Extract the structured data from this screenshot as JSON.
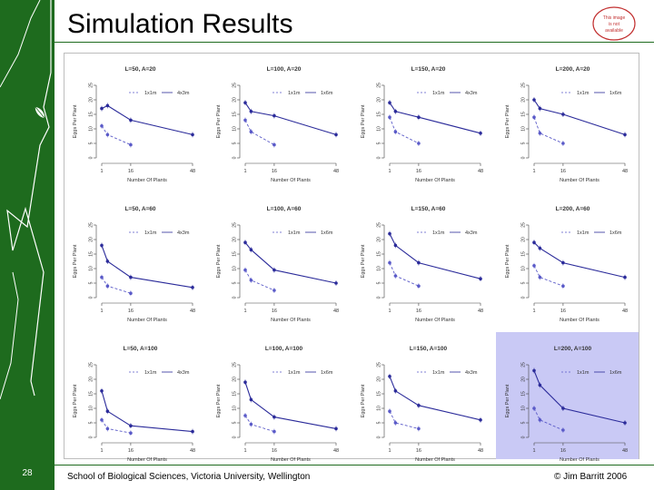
{
  "slide": {
    "title": "Simulation Results",
    "number": "28",
    "footer": "School of Biological Sciences, Victoria University, Wellington",
    "copyright": "© Jim Barritt 2006",
    "logo_text": [
      "This image",
      "is not",
      "available"
    ]
  },
  "colors": {
    "sidebar": "#1e6b1e",
    "series_solid": "#2b2b9a",
    "series_dashed": "#5a5ac8",
    "highlight": "#c9c9f5"
  },
  "chart_data": {
    "type": "line",
    "layout": "3x4 small multiples",
    "highlighted_panel": "L=200, A=100",
    "panels": [
      {
        "title": "L=50, A=20",
        "ylabel": "Eggs Per Plant",
        "legend": [
          "1x1m",
          "4x3m"
        ],
        "xlabel": "Number Of Plants",
        "xticks": [
          1,
          16,
          48
        ],
        "yticks": [
          0,
          5,
          10,
          15,
          20,
          25
        ],
        "ylim": [
          0,
          25
        ],
        "series": [
          {
            "name": "4x3m",
            "style": "solid",
            "x": [
              1,
              4,
              16,
              48
            ],
            "y": [
              17,
              18,
              13,
              8
            ]
          },
          {
            "name": "1x1m",
            "style": "dashed",
            "x": [
              1,
              4,
              16
            ],
            "y": [
              11,
              8,
              4.5
            ]
          }
        ]
      },
      {
        "title": "L=100, A=20",
        "ylabel": "Eggs Per Plant",
        "legend": [
          "1x1m",
          "1x6m"
        ],
        "xlabel": "Number Of Plants",
        "xticks": [
          1,
          16,
          48
        ],
        "yticks": [
          0,
          5,
          10,
          15,
          20,
          25
        ],
        "ylim": [
          0,
          25
        ],
        "series": [
          {
            "name": "1x6m",
            "style": "solid",
            "x": [
              1,
              4,
              16,
              48
            ],
            "y": [
              19,
              16,
              14.5,
              8
            ]
          },
          {
            "name": "1x1m",
            "style": "dashed",
            "x": [
              1,
              4,
              16
            ],
            "y": [
              13,
              9,
              4.5
            ]
          }
        ]
      },
      {
        "title": "L=150, A=20",
        "ylabel": "Eggs Per Plant",
        "legend": [
          "1x1m",
          "4x3m"
        ],
        "xlabel": "Number Of Plants",
        "xticks": [
          1,
          16,
          48
        ],
        "yticks": [
          0,
          5,
          10,
          15,
          20,
          25
        ],
        "ylim": [
          0,
          25
        ],
        "series": [
          {
            "name": "4x3m",
            "style": "solid",
            "x": [
              1,
              4,
              16,
              48
            ],
            "y": [
              19,
              16,
              14,
              8.5
            ]
          },
          {
            "name": "1x1m",
            "style": "dashed",
            "x": [
              1,
              4,
              16
            ],
            "y": [
              14,
              9,
              5
            ]
          }
        ]
      },
      {
        "title": "L=200, A=20",
        "ylabel": "Eggs Per Plant",
        "legend": [
          "1x1m",
          "1x6m"
        ],
        "xlabel": "Number Of Plants",
        "xticks": [
          1,
          16,
          48
        ],
        "yticks": [
          0,
          5,
          10,
          15,
          20,
          25
        ],
        "ylim": [
          0,
          25
        ],
        "series": [
          {
            "name": "1x6m",
            "style": "solid",
            "x": [
              1,
              4,
              16,
              48
            ],
            "y": [
              20,
              17,
              15,
              8
            ]
          },
          {
            "name": "1x1m",
            "style": "dashed",
            "x": [
              1,
              4,
              16
            ],
            "y": [
              14,
              8.5,
              5
            ]
          }
        ]
      },
      {
        "title": "L=50, A=60",
        "ylabel": "Eggs Per Plant",
        "legend": [
          "1x1m",
          "4x3m"
        ],
        "xlabel": "Number Of Plants",
        "xticks": [
          1,
          16,
          48
        ],
        "yticks": [
          0,
          5,
          10,
          15,
          20,
          25
        ],
        "ylim": [
          0,
          25
        ],
        "series": [
          {
            "name": "4x3m",
            "style": "solid",
            "x": [
              1,
              4,
              16,
              48
            ],
            "y": [
              18,
              12.5,
              7,
              3.5
            ]
          },
          {
            "name": "1x1m",
            "style": "dashed",
            "x": [
              1,
              4,
              16
            ],
            "y": [
              7,
              4,
              1.5
            ]
          }
        ]
      },
      {
        "title": "L=100, A=60",
        "ylabel": "Eggs Per Plant",
        "legend": [
          "1x1m",
          "1x6m"
        ],
        "xlabel": "Number Of Plants",
        "xticks": [
          1,
          16,
          48
        ],
        "yticks": [
          0,
          5,
          10,
          15,
          20,
          25
        ],
        "ylim": [
          0,
          25
        ],
        "series": [
          {
            "name": "1x6m",
            "style": "solid",
            "x": [
              1,
              4,
              16,
              48
            ],
            "y": [
              19,
              16.5,
              9.5,
              5
            ]
          },
          {
            "name": "1x1m",
            "style": "dashed",
            "x": [
              1,
              4,
              16
            ],
            "y": [
              9.5,
              6,
              2.5
            ]
          }
        ]
      },
      {
        "title": "L=150, A=60",
        "ylabel": "Eggs Per Plant",
        "legend": [
          "1x1m",
          "4x3m"
        ],
        "xlabel": "Number Of Plants",
        "xticks": [
          1,
          16,
          48
        ],
        "yticks": [
          0,
          5,
          10,
          15,
          20,
          25
        ],
        "ylim": [
          0,
          25
        ],
        "series": [
          {
            "name": "4x3m",
            "style": "solid",
            "x": [
              1,
              4,
              16,
              48
            ],
            "y": [
              22,
              18,
              12,
              6.5
            ]
          },
          {
            "name": "1x1m",
            "style": "dashed",
            "x": [
              1,
              4,
              16
            ],
            "y": [
              12,
              7.5,
              4
            ]
          }
        ]
      },
      {
        "title": "L=200, A=60",
        "ylabel": "Eggs Per Plant",
        "legend": [
          "1x1m",
          "1x6m"
        ],
        "xlabel": "Number Of Plants",
        "xticks": [
          1,
          16,
          48
        ],
        "yticks": [
          0,
          5,
          10,
          15,
          20,
          25
        ],
        "ylim": [
          0,
          25
        ],
        "series": [
          {
            "name": "1x6m",
            "style": "solid",
            "x": [
              1,
              4,
              16,
              48
            ],
            "y": [
              19,
              17,
              12,
              7
            ]
          },
          {
            "name": "1x1m",
            "style": "dashed",
            "x": [
              1,
              4,
              16
            ],
            "y": [
              11,
              7,
              4
            ]
          }
        ]
      },
      {
        "title": "L=50, A=100",
        "ylabel": "Eggs Per Plant",
        "legend": [
          "1x1m",
          "4x3m"
        ],
        "xlabel": "Number Of Plants",
        "xticks": [
          1,
          16,
          48
        ],
        "yticks": [
          0,
          5,
          10,
          15,
          20,
          25
        ],
        "ylim": [
          0,
          25
        ],
        "series": [
          {
            "name": "4x3m",
            "style": "solid",
            "x": [
              1,
              4,
              16,
              48
            ],
            "y": [
              16,
              9,
              4,
              2
            ]
          },
          {
            "name": "1x1m",
            "style": "dashed",
            "x": [
              1,
              4,
              16
            ],
            "y": [
              6,
              3,
              1.5
            ]
          }
        ]
      },
      {
        "title": "L=100, A=100",
        "ylabel": "Eggs Per Plant",
        "legend": [
          "1x1m",
          "1x6m"
        ],
        "xlabel": "Number Of Plants",
        "xticks": [
          1,
          16,
          48
        ],
        "yticks": [
          0,
          5,
          10,
          15,
          20,
          25
        ],
        "ylim": [
          0,
          25
        ],
        "series": [
          {
            "name": "1x6m",
            "style": "solid",
            "x": [
              1,
              4,
              16,
              48
            ],
            "y": [
              19,
              13,
              7,
              3
            ]
          },
          {
            "name": "1x1m",
            "style": "dashed",
            "x": [
              1,
              4,
              16
            ],
            "y": [
              7.5,
              4.5,
              2
            ]
          }
        ]
      },
      {
        "title": "L=150, A=100",
        "ylabel": "Eggs Per Plant",
        "legend": [
          "1x1m",
          "4x3m"
        ],
        "xlabel": "Number Of Plants",
        "xticks": [
          1,
          16,
          48
        ],
        "yticks": [
          0,
          5,
          10,
          15,
          20,
          25
        ],
        "ylim": [
          0,
          25
        ],
        "series": [
          {
            "name": "4x3m",
            "style": "solid",
            "x": [
              1,
              4,
              16,
              48
            ],
            "y": [
              21,
              16,
              11,
              6
            ]
          },
          {
            "name": "1x1m",
            "style": "dashed",
            "x": [
              1,
              4,
              16
            ],
            "y": [
              9,
              5,
              3
            ]
          }
        ]
      },
      {
        "title": "L=200, A=100",
        "ylabel": "Eggs Per Plant",
        "legend": [
          "1x1m",
          "1x6m"
        ],
        "xlabel": "Number Of Plants",
        "xticks": [
          1,
          16,
          48
        ],
        "yticks": [
          0,
          5,
          10,
          15,
          20,
          25
        ],
        "ylim": [
          0,
          25
        ],
        "series": [
          {
            "name": "1x6m",
            "style": "solid",
            "x": [
              1,
              4,
              16,
              48
            ],
            "y": [
              23,
              18,
              10,
              5
            ]
          },
          {
            "name": "1x1m",
            "style": "dashed",
            "x": [
              1,
              4,
              16
            ],
            "y": [
              10,
              6,
              2.5
            ]
          }
        ]
      }
    ]
  }
}
